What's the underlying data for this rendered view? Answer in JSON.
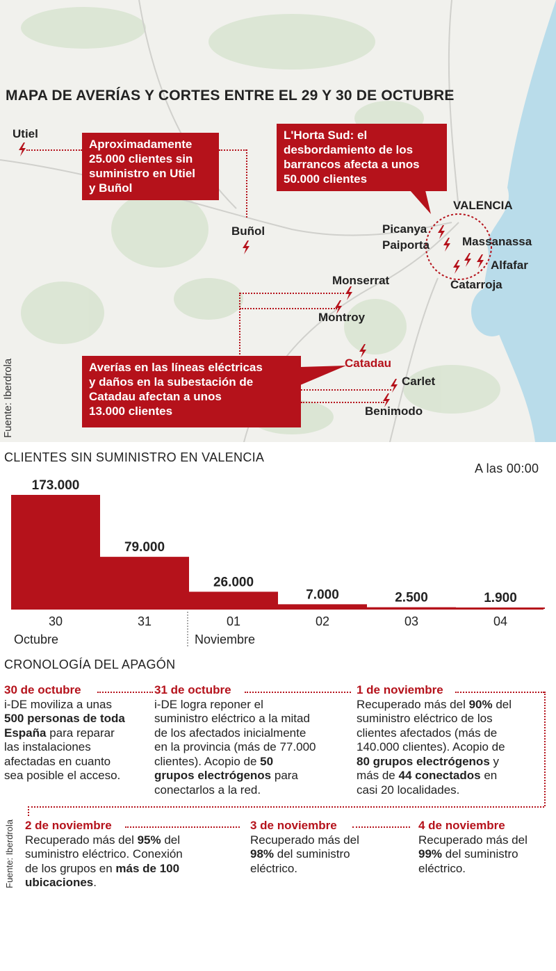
{
  "map": {
    "title": "MAPA DE AVERÍAS Y CORTES ENTRE EL 29 Y 30 DE OCTUBRE",
    "source": "Fuente: Iberdrola",
    "places": {
      "utiel": "Utiel",
      "bunol": "Buñol",
      "valencia": "VALENCIA",
      "picanya": "Picanya",
      "paiporta": "Paiporta",
      "massanassa": "Massanassa",
      "alfafar": "Alfafar",
      "catarroja": "Catarroja",
      "monserrat": "Monserrat",
      "montroy": "Montroy",
      "catadau": "Catadau",
      "carlet": "Carlet",
      "benimodo": "Benimodo"
    },
    "callouts": {
      "utiel_bunol": [
        "Aproximadamente",
        "25.000 clientes sin",
        "suministro en Utiel",
        "y Buñol"
      ],
      "horta_sud": [
        "L'Horta Sud: el",
        "desbordamiento de los",
        "barrancos afecta a unos",
        "50.000 clientes"
      ],
      "catadau": [
        "Averías en las líneas eléctricas",
        "y daños en la subestación de",
        "Catadau afectan a unos",
        "13.000 clientes"
      ]
    },
    "colors": {
      "accent": "#b5121b",
      "sea": "#b9dcea",
      "green": "#d7e3cf"
    }
  },
  "chart_data": {
    "type": "bar",
    "title": "CLIENTES SIN SUMINISTRO EN VALENCIA",
    "note": "A las 00:00",
    "categories": [
      "30",
      "31",
      "01",
      "02",
      "03",
      "04"
    ],
    "values": [
      173000,
      79000,
      26000,
      7000,
      2500,
      1900
    ],
    "value_labels": [
      "173.000",
      "79.000",
      "26.000",
      "7.000",
      "2.500",
      "1.900"
    ],
    "month_labels": [
      "Octubre",
      "Noviembre"
    ],
    "ylim": [
      0,
      173000
    ],
    "color": "#b5121b"
  },
  "timeline": {
    "title": "CRONOLOGÍA DEL APAGÓN",
    "source": "Fuente: Iberdrola",
    "entries": [
      {
        "date": "30 de octubre",
        "lines": [
          [
            [
              "i-DE moviliza a unas",
              false
            ]
          ],
          [
            [
              "500 personas de toda",
              true
            ]
          ],
          [
            [
              "España",
              true
            ],
            [
              " para reparar",
              false
            ]
          ],
          [
            [
              "las instalaciones",
              false
            ]
          ],
          [
            [
              "afectadas en cuanto",
              false
            ]
          ],
          [
            [
              "sea posible el acceso.",
              false
            ]
          ]
        ]
      },
      {
        "date": "31 de octubre",
        "lines": [
          [
            [
              "i-DE logra reponer el",
              false
            ]
          ],
          [
            [
              "suministro eléctrico a la mitad",
              false
            ]
          ],
          [
            [
              "de los afectados inicialmente",
              false
            ]
          ],
          [
            [
              "en la provincia (más de 77.000",
              false
            ]
          ],
          [
            [
              "clientes). Acopio de ",
              false
            ],
            [
              "50",
              true
            ]
          ],
          [
            [
              "grupos electrógenos",
              true
            ],
            [
              " para",
              false
            ]
          ],
          [
            [
              "conectarlos a la red.",
              false
            ]
          ]
        ]
      },
      {
        "date": "1 de noviembre",
        "lines": [
          [
            [
              "Recuperado más del ",
              false
            ],
            [
              "90%",
              true
            ],
            [
              " del",
              false
            ]
          ],
          [
            [
              "suministro eléctrico de los",
              false
            ]
          ],
          [
            [
              "clientes afectados (más de",
              false
            ]
          ],
          [
            [
              "140.000 clientes). Acopio de",
              false
            ]
          ],
          [
            [
              "80 grupos electrógenos",
              true
            ],
            [
              " y",
              false
            ]
          ],
          [
            [
              "más de ",
              false
            ],
            [
              "44 conectados",
              true
            ],
            [
              " en",
              false
            ]
          ],
          [
            [
              "casi 20 localidades.",
              false
            ]
          ]
        ]
      },
      {
        "date": "2 de noviembre",
        "lines": [
          [
            [
              "Recuperado más del ",
              false
            ],
            [
              "95%",
              true
            ],
            [
              " del",
              false
            ]
          ],
          [
            [
              "suministro eléctrico. Conexión",
              false
            ]
          ],
          [
            [
              "de los grupos en ",
              false
            ],
            [
              "más de 100",
              true
            ]
          ],
          [
            [
              "ubicaciones",
              true
            ],
            [
              ".",
              false
            ]
          ]
        ]
      },
      {
        "date": "3 de noviembre",
        "lines": [
          [
            [
              "Recuperado más del",
              false
            ]
          ],
          [
            [
              "98%",
              true
            ],
            [
              " del suministro",
              false
            ]
          ],
          [
            [
              "eléctrico.",
              false
            ]
          ]
        ]
      },
      {
        "date": "4 de noviembre",
        "lines": [
          [
            [
              "Recuperado más del",
              false
            ]
          ],
          [
            [
              "99%",
              true
            ],
            [
              " del suministro",
              false
            ]
          ],
          [
            [
              "eléctrico.",
              false
            ]
          ]
        ]
      }
    ]
  }
}
